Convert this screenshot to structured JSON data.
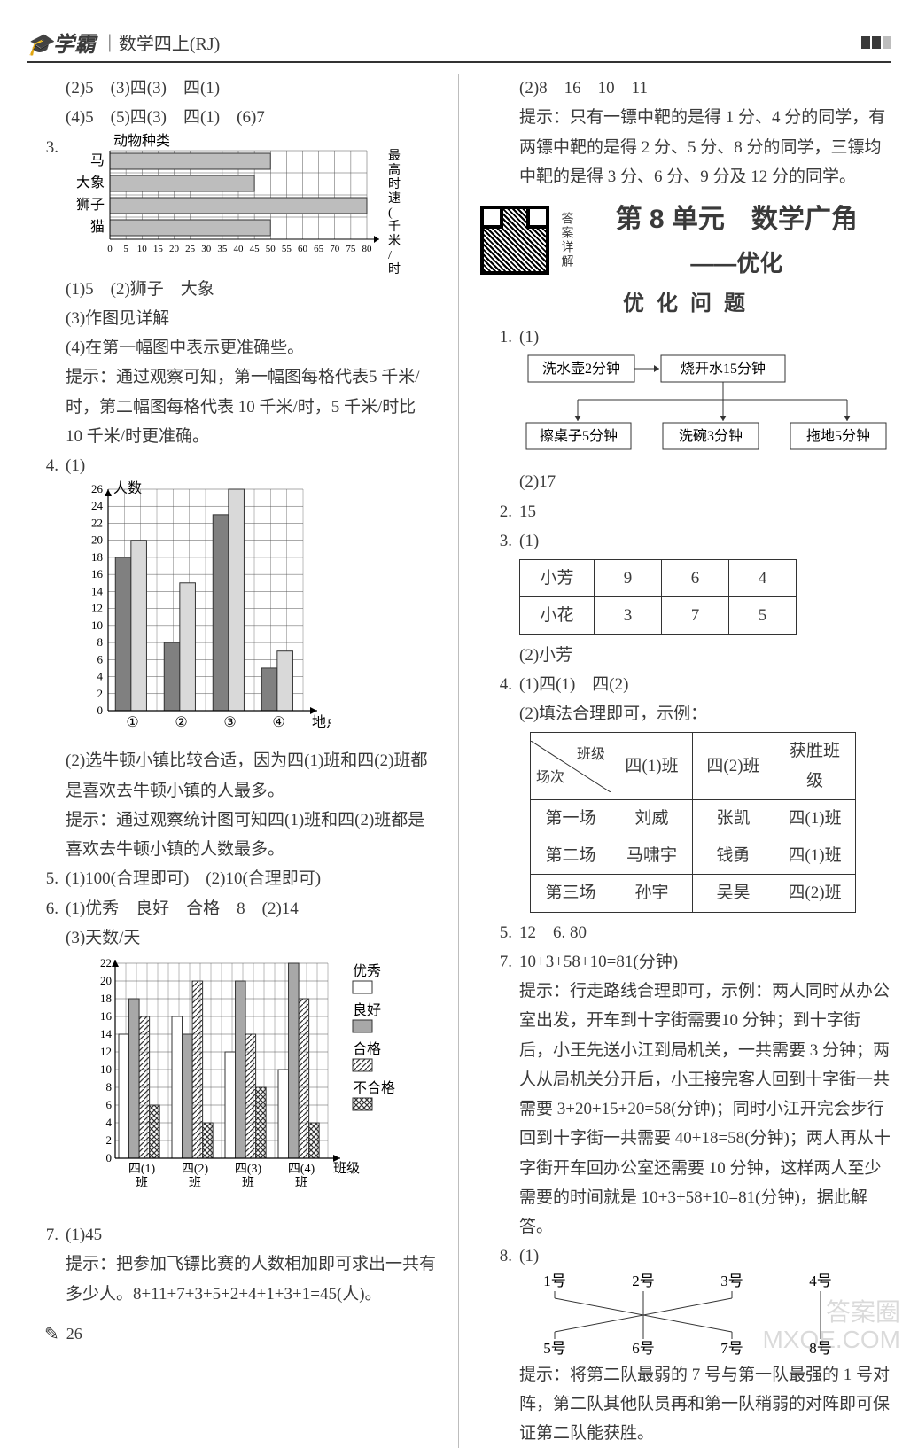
{
  "header": {
    "logo": "学霸",
    "subtitle": "｜数学四上(RJ)"
  },
  "left": {
    "l1": "(2)5　(3)四(3)　四(1)",
    "l2": "(4)5　(5)四(3)　四(1)　(6)7",
    "q3_num": "3.",
    "chart3": {
      "title": "动物种类",
      "y_labels": [
        "马",
        "大象",
        "狮子",
        "猫"
      ],
      "values": [
        50,
        45,
        80,
        50
      ],
      "xtick_step": 5,
      "xmax": 80,
      "right_label": "最高时速(千米/时)",
      "bar_color": "#bdbdbd",
      "grid_color": "#555"
    },
    "q3a": "(1)5　(2)狮子　大象",
    "q3b": "(3)作图见详解",
    "q3c": "(4)在第一幅图中表示更准确些。",
    "q3_hint": "提示：通过观察可知，第一幅图每格代表5 千米/时，第二幅图每格代表 10 千米/时，5 千米/时比 10 千米/时更准确。",
    "q4_num": "4.",
    "q4_label": "(1)",
    "chart4": {
      "y_title": "人数",
      "ymax": 26,
      "ytick_step": 2,
      "x_labels": [
        "①",
        "②",
        "③",
        "④",
        "地点"
      ],
      "series_a": [
        18,
        8,
        23,
        5
      ],
      "series_b": [
        20,
        15,
        26,
        7
      ],
      "bar_a_color": "#808080",
      "bar_b_color": "#d9d9d9",
      "grid_color": "#555"
    },
    "q4b": "(2)选牛顿小镇比较合适，因为四(1)班和四(2)班都是喜欢去牛顿小镇的人最多。",
    "q4_hint": "提示：通过观察统计图可知四(1)班和四(2)班都是喜欢去牛顿小镇的人数最多。",
    "q5": "5.",
    "q5t": "(1)100(合理即可)　(2)10(合理即可)",
    "q6": "6.",
    "q6t": "(1)优秀　良好　合格　8　(2)14",
    "q6b": "(3)天数/天",
    "chart6": {
      "ymax": 22,
      "ytick_step": 2,
      "x_labels": [
        "四(1)班",
        "四(2)班",
        "四(3)班",
        "四(4)班",
        "班级"
      ],
      "legend": [
        "优秀",
        "良好",
        "合格",
        "不合格"
      ],
      "colors": [
        "#ffffff",
        "#a8a8a8",
        "hatch",
        "cross"
      ],
      "data": [
        [
          14,
          18,
          16,
          6
        ],
        [
          16,
          14,
          20,
          4
        ],
        [
          12,
          20,
          14,
          8
        ],
        [
          10,
          22,
          18,
          4
        ]
      ],
      "grid_color": "#555"
    },
    "q7": "7.",
    "q7a": "(1)45",
    "q7_hint": "提示：把参加飞镖比赛的人数相加即可求出一共有多少人。8+11+7+3+5+2+4+1+3+1=45(人)。"
  },
  "right": {
    "r1": "(2)8　16　10　11",
    "r1_hint": "提示：只有一镖中靶的是得 1 分、4 分的同学，有两镖中靶的是得 2 分、5 分、8 分的同学，三镖均中靶的是得 3 分、6 分、9 分及 12 分的同学。",
    "unit": "第 8 单元　数学广角",
    "unit2": "——优化",
    "sub": "优 化 问 题",
    "qr_label": "答案详解",
    "q1": "1.",
    "q1a": "(1)",
    "flow": {
      "a": "洗水壶2分钟",
      "b": "烧开水15分钟",
      "c": "擦桌子5分钟",
      "d": "洗碗3分钟",
      "e": "拖地5分钟"
    },
    "q1b": "(2)17",
    "q2": "2.",
    "q2t": "15",
    "q3": "3.",
    "q3a": "(1)",
    "tbl3": {
      "rows": [
        [
          "小芳",
          "9",
          "6",
          "4"
        ],
        [
          "小花",
          "3",
          "7",
          "5"
        ]
      ]
    },
    "q3b": "(2)小芳",
    "q4": "4.",
    "q4a": "(1)四(1)　四(2)",
    "q4b": "(2)填法合理即可，示例：",
    "tbl4": {
      "head_t": "班级",
      "head_b": "场次",
      "cols": [
        "四(1)班",
        "四(2)班",
        "获胜班级"
      ],
      "rows": [
        [
          "第一场",
          "刘威",
          "张凯",
          "四(1)班"
        ],
        [
          "第二场",
          "马啸宇",
          "钱勇",
          "四(1)班"
        ],
        [
          "第三场",
          "孙宇",
          "吴昊",
          "四(2)班"
        ]
      ]
    },
    "q5": "5.",
    "q5t": "12",
    "q6": "6.",
    "q6t": "80",
    "q7": "7.",
    "q7t": "10+3+58+10=81(分钟)",
    "q7_hint": "提示：行走路线合理即可，示例：两人同时从办公室出发，开车到十字街需要10 分钟；到十字街后，小王先送小江到局机关，一共需要 3 分钟；两人从局机关分开后，小王接完客人回到十字街一共需要 3+20+15+20=58(分钟)；同时小江开完会步行回到十字街一共需要 40+18=58(分钟)；两人再从十字街开车回办公室还需要 10 分钟，这样两人至少需要的时间就是 10+3+58+10=81(分钟)，据此解答。",
    "q8": "8.",
    "q8a": "(1)",
    "net": {
      "top": [
        "1号",
        "2号",
        "3号",
        "4号"
      ],
      "bot": [
        "5号",
        "6号",
        "7号",
        "8号"
      ]
    },
    "q8_hint": "提示：将第二队最弱的 7 号与第一队最强的 1 号对阵，第二队其他队员再和第一队稍弱的对阵即可保证第二队能获胜。"
  },
  "page": "26",
  "watermark": "答案圈\nMXQE.COM"
}
